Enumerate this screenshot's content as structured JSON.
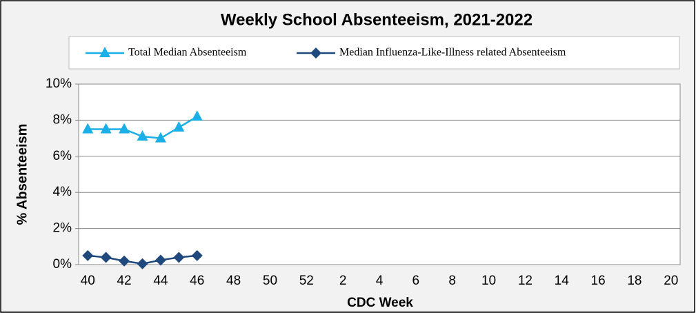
{
  "chart_data": {
    "type": "line",
    "title": "Weekly School Absenteeism, 2021-2022",
    "xlabel": "CDC Week",
    "ylabel": "% Absenteeism",
    "categories": [
      "40",
      null,
      "42",
      null,
      "44",
      null,
      "46",
      null,
      "48",
      null,
      "50",
      null,
      "52",
      null,
      "2",
      null,
      "4",
      null,
      "6",
      null,
      "8",
      null,
      "10",
      null,
      "12",
      null,
      "14",
      null,
      "16",
      null,
      "18",
      null,
      "20"
    ],
    "series": [
      {
        "name": "Total Median Absenteeism",
        "color": "#1aafe6",
        "marker": "triangle",
        "values": [
          7.5,
          7.5,
          7.5,
          7.1,
          7.0,
          7.6,
          8.2,
          null,
          null,
          null,
          null,
          null,
          null,
          null,
          null,
          null,
          null,
          null,
          null,
          null,
          null,
          null,
          null,
          null,
          null,
          null,
          null,
          null,
          null,
          null,
          null,
          null,
          null
        ]
      },
      {
        "name": "Median Influenza-Like-Illness related Absenteeism",
        "color": "#1f497d",
        "marker": "diamond",
        "values": [
          0.5,
          0.4,
          0.2,
          0.05,
          0.25,
          0.4,
          0.5,
          null,
          null,
          null,
          null,
          null,
          null,
          null,
          null,
          null,
          null,
          null,
          null,
          null,
          null,
          null,
          null,
          null,
          null,
          null,
          null,
          null,
          null,
          null,
          null,
          null,
          null
        ]
      }
    ],
    "ylim": [
      0,
      10
    ],
    "yticks": [
      {
        "value": 0,
        "label": "0%"
      },
      {
        "value": 2,
        "label": "2%"
      },
      {
        "value": 4,
        "label": "4%"
      },
      {
        "value": 6,
        "label": "6%"
      },
      {
        "value": 8,
        "label": "8%"
      },
      {
        "value": 10,
        "label": "10%"
      }
    ],
    "grid": true,
    "legend": "top"
  }
}
